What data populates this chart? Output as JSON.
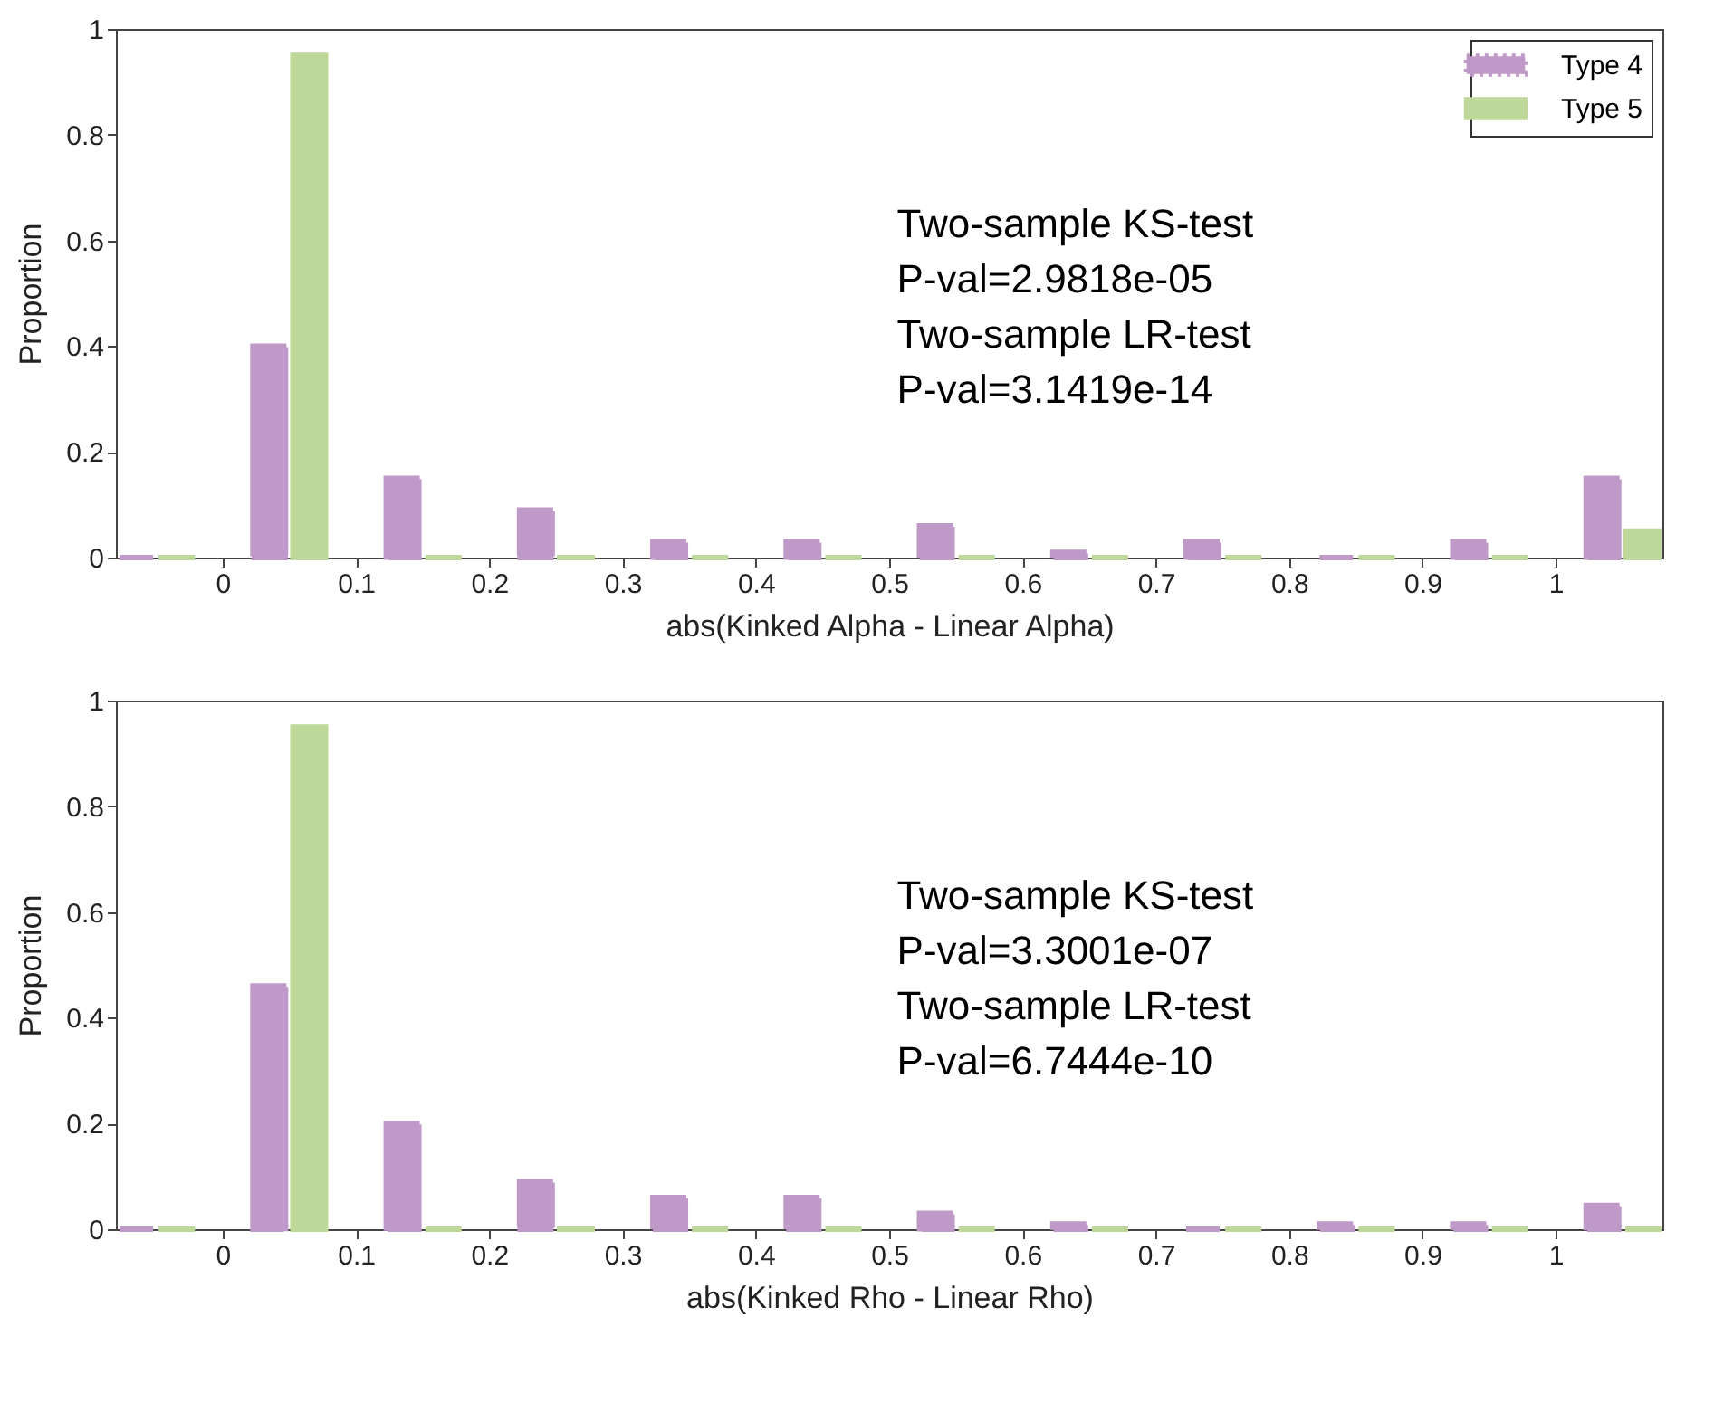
{
  "chart_data": [
    {
      "type": "bar",
      "xlabel": "abs(Kinked Alpha - Linear Alpha)",
      "ylabel": "Proportion",
      "xlim": [
        -0.08,
        1.08
      ],
      "xticks": [
        0,
        0.1,
        0.2,
        0.3,
        0.4,
        0.5,
        0.6,
        0.7,
        0.8,
        0.9,
        1
      ],
      "ylim": [
        0,
        1
      ],
      "yticks": [
        0,
        0.2,
        0.4,
        0.6,
        0.8,
        1
      ],
      "legend": "top right",
      "annotations": [
        "Two-sample KS-test",
        "P-val=2.9818e-05",
        "Two-sample LR-test",
        "P-val=3.1419e-14"
      ],
      "series": [
        {
          "name": "Type 4",
          "color": "#bf99c8",
          "line_style": "dotted",
          "x": [
            -0.065,
            0.035,
            0.135,
            0.235,
            0.335,
            0.435,
            0.535,
            0.635,
            0.735,
            0.835,
            0.935,
            1.035
          ],
          "values": [
            0,
            0.4,
            0.15,
            0.09,
            0.03,
            0.03,
            0.06,
            0.01,
            0.03,
            0,
            0.03,
            0.15
          ]
        },
        {
          "name": "Type 5",
          "color": "#bdd898",
          "line_style": "solid",
          "x": [
            -0.035,
            0.065,
            0.165,
            0.265,
            0.365,
            0.465,
            0.565,
            0.665,
            0.765,
            0.865,
            0.965,
            1.065
          ],
          "values": [
            0,
            0.95,
            0,
            0,
            0,
            0,
            0,
            0,
            0,
            0,
            0,
            0.05
          ]
        }
      ]
    },
    {
      "type": "bar",
      "xlabel": "abs(Kinked Rho - Linear Rho)",
      "ylabel": "Proportion",
      "xlim": [
        -0.08,
        1.08
      ],
      "xticks": [
        0,
        0.1,
        0.2,
        0.3,
        0.4,
        0.5,
        0.6,
        0.7,
        0.8,
        0.9,
        1
      ],
      "ylim": [
        0,
        1
      ],
      "yticks": [
        0,
        0.2,
        0.4,
        0.6,
        0.8,
        1
      ],
      "annotations": [
        "Two-sample KS-test",
        "P-val=3.3001e-07",
        "Two-sample LR-test",
        "P-val=6.7444e-10"
      ],
      "series": [
        {
          "color": "#bf99c8",
          "line_style": "dotted",
          "x": [
            -0.065,
            0.035,
            0.135,
            0.235,
            0.335,
            0.435,
            0.535,
            0.635,
            0.735,
            0.835,
            0.935,
            1.035
          ],
          "values": [
            0,
            0.46,
            0.2,
            0.09,
            0.06,
            0.06,
            0.03,
            0.01,
            0,
            0.01,
            0.01,
            0.045
          ]
        },
        {
          "color": "#bdd898",
          "line_style": "solid",
          "x": [
            -0.035,
            0.065,
            0.165,
            0.265,
            0.365,
            0.465,
            0.565,
            0.665,
            0.765,
            0.865,
            0.965,
            1.065
          ],
          "values": [
            0,
            0.95,
            0,
            0,
            0,
            0,
            0,
            0,
            0,
            0,
            0,
            0
          ]
        }
      ]
    }
  ]
}
